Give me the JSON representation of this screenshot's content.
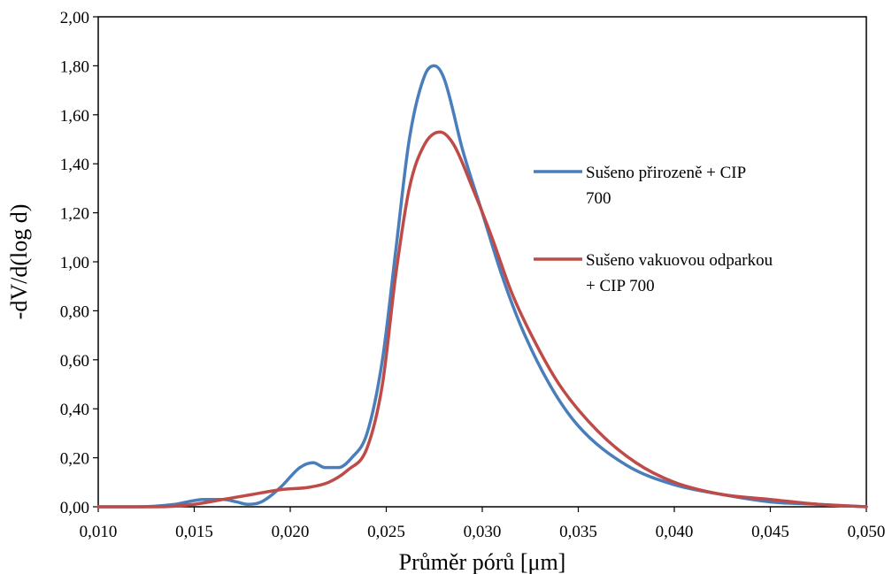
{
  "chart_data": {
    "type": "line",
    "xlabel": "Průměr pórů [μm]",
    "ylabel": "-dV/d(log d)",
    "xlim": [
      0.01,
      0.05
    ],
    "ylim": [
      0,
      2
    ],
    "x_ticks": [
      "0,010",
      "0,015",
      "0,020",
      "0,025",
      "0,030",
      "0,035",
      "0,040",
      "0,045",
      "0,050"
    ],
    "y_ticks": [
      "0,00",
      "0,20",
      "0,40",
      "0,60",
      "0,80",
      "1,00",
      "1,20",
      "1,40",
      "1,60",
      "1,80",
      "2,00"
    ],
    "grid": false,
    "legend_position": "right",
    "series": [
      {
        "name": "Sušeno přirozeně + CIP 700",
        "legend_lines": [
          "Sušeno přirozeně + CIP",
          "700"
        ],
        "color": "#4a7ebb",
        "x": [
          0.01,
          0.012,
          0.014,
          0.0155,
          0.0165,
          0.0172,
          0.0178,
          0.0185,
          0.0195,
          0.0205,
          0.0212,
          0.0218,
          0.0225,
          0.0232,
          0.024,
          0.0248,
          0.0255,
          0.0262,
          0.027,
          0.0275,
          0.028,
          0.029,
          0.03,
          0.031,
          0.032,
          0.0335,
          0.035,
          0.0375,
          0.04,
          0.0425,
          0.045,
          0.0475,
          0.05
        ],
        "y": [
          0.0,
          0.0,
          0.01,
          0.03,
          0.03,
          0.02,
          0.01,
          0.02,
          0.08,
          0.16,
          0.18,
          0.16,
          0.16,
          0.2,
          0.3,
          0.6,
          1.05,
          1.5,
          1.76,
          1.8,
          1.75,
          1.45,
          1.2,
          0.95,
          0.74,
          0.5,
          0.33,
          0.17,
          0.09,
          0.05,
          0.02,
          0.01,
          0.0
        ]
      },
      {
        "name": "Sušeno vakuovou odparkou + CIP 700",
        "legend_lines": [
          "Sušeno vakuovou odparkou",
          "+ CIP 700"
        ],
        "color": "#be4b48",
        "x": [
          0.01,
          0.013,
          0.015,
          0.0165,
          0.018,
          0.0195,
          0.021,
          0.022,
          0.023,
          0.024,
          0.0248,
          0.0255,
          0.0262,
          0.027,
          0.0278,
          0.0285,
          0.0295,
          0.0305,
          0.0315,
          0.0325,
          0.034,
          0.036,
          0.038,
          0.04,
          0.0425,
          0.045,
          0.0475,
          0.05
        ],
        "y": [
          0.0,
          0.0,
          0.01,
          0.03,
          0.05,
          0.07,
          0.08,
          0.1,
          0.15,
          0.24,
          0.5,
          0.95,
          1.3,
          1.48,
          1.53,
          1.48,
          1.3,
          1.1,
          0.88,
          0.71,
          0.5,
          0.31,
          0.18,
          0.1,
          0.05,
          0.03,
          0.01,
          0.0
        ]
      }
    ]
  }
}
